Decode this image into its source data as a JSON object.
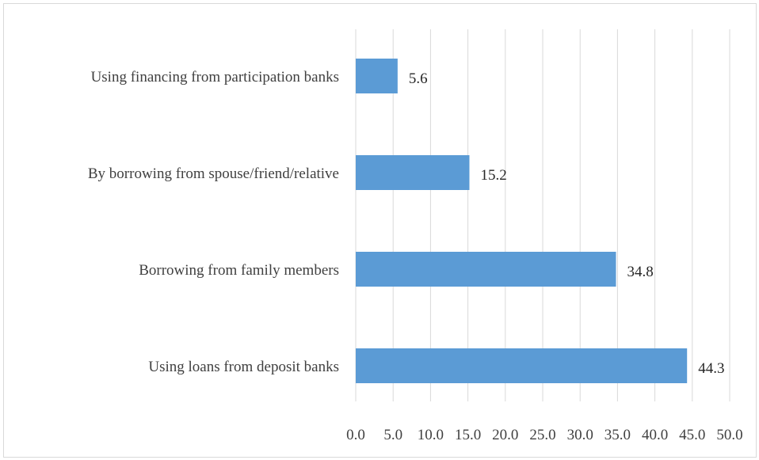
{
  "chart_data": {
    "type": "bar",
    "orientation": "horizontal",
    "categories": [
      "Using financing from participation banks",
      "By borrowing from spouse/friend/relative",
      "Borrowing from family members",
      "Using loans from deposit banks"
    ],
    "values": [
      5.6,
      15.2,
      34.8,
      44.3
    ],
    "value_labels": [
      "5.6",
      "15.2",
      "34.8",
      "44.3"
    ],
    "xlim": [
      0,
      50
    ],
    "x_ticks": [
      "0.0",
      "5.0",
      "10.0",
      "15.0",
      "20.0",
      "25.0",
      "30.0",
      "35.0",
      "40.0",
      "45.0",
      "50.0"
    ],
    "grid": "vertical",
    "legend": "none",
    "bar_color": "#5b9bd5",
    "grid_color": "#d9d9d9"
  }
}
